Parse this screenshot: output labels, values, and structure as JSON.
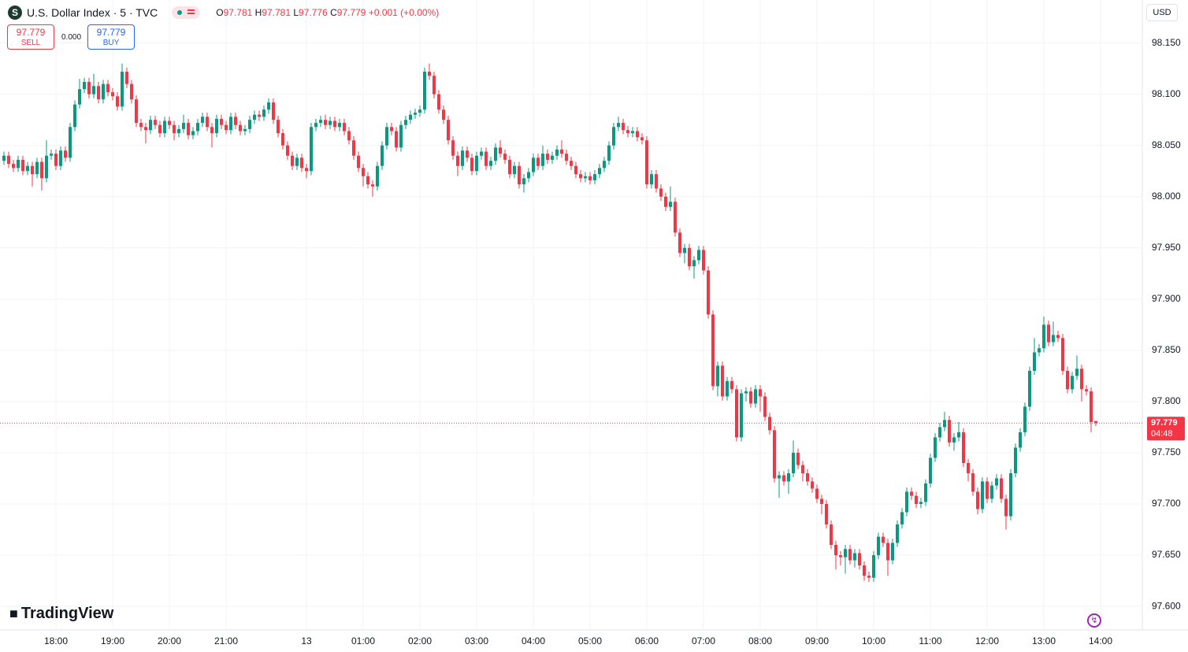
{
  "header": {
    "icon": "S",
    "symbol": "U.S. Dollar Index · 5 · TVC",
    "o_label": "O",
    "o": "97.781",
    "h_label": "H",
    "h": "97.781",
    "l_label": "L",
    "l": "97.776",
    "c_label": "C",
    "c": "97.779",
    "change": "+0.001 (+0.00%)"
  },
  "trade": {
    "sell_price": "97.779",
    "sell": "SELL",
    "spread": "0.000",
    "buy_price": "97.779",
    "buy": "BUY"
  },
  "currency": "USD",
  "logo": "TradingView",
  "chart_data": {
    "type": "candlestick",
    "up_color": "#089981",
    "down_color": "#f23645",
    "grid": true,
    "open": [
      98.035,
      98.04,
      98.032,
      98.028,
      98.036,
      98.025,
      98.03,
      98.022,
      98.034,
      98.018,
      98.04,
      98.042,
      98.03,
      98.045,
      98.038,
      98.068,
      98.09,
      98.105,
      98.112,
      98.1,
      98.108,
      98.095,
      98.11,
      98.102,
      98.098,
      98.088,
      98.122,
      98.11,
      98.095,
      98.072,
      98.068,
      98.065,
      98.075,
      98.07,
      98.062,
      98.074,
      98.07,
      98.062,
      98.066,
      98.072,
      98.06,
      98.064,
      98.072,
      98.078,
      98.068,
      98.062,
      98.076,
      98.07,
      98.065,
      98.078,
      98.07,
      98.064,
      98.066,
      98.075,
      98.08,
      98.078,
      98.085,
      98.092,
      98.075,
      98.062,
      98.05,
      98.04,
      98.03,
      98.038,
      98.028,
      98.025,
      98.068,
      98.072,
      98.075,
      98.07,
      98.074,
      98.068,
      98.072,
      98.064,
      98.055,
      98.04,
      98.028,
      98.02,
      98.012,
      98.01,
      98.03,
      98.05,
      98.068,
      98.064,
      98.048,
      98.07,
      98.075,
      98.08,
      98.082,
      98.085,
      98.122,
      98.118,
      98.1,
      98.085,
      98.075,
      98.055,
      98.04,
      98.03,
      98.045,
      98.038,
      98.025,
      98.04,
      98.044,
      98.03,
      98.035,
      98.048,
      98.042,
      98.036,
      98.022,
      98.03,
      98.012,
      98.018,
      98.024,
      98.038,
      98.03,
      98.042,
      98.036,
      98.04,
      98.046,
      98.042,
      98.035,
      98.03,
      98.022,
      98.018,
      98.02,
      98.016,
      98.022,
      98.028,
      98.035,
      98.05,
      98.068,
      98.072,
      98.065,
      98.062,
      98.064,
      98.058,
      98.055,
      98.012,
      98.022,
      98.008,
      98.0,
      97.99,
      97.995,
      97.965,
      97.945,
      97.95,
      97.932,
      97.938,
      97.948,
      97.928,
      97.885,
      97.815,
      97.835,
      97.805,
      97.82,
      97.812,
      97.765,
      97.808,
      97.81,
      97.798,
      97.812,
      97.805,
      97.785,
      97.772,
      97.725,
      97.728,
      97.722,
      97.73,
      97.75,
      97.738,
      97.73,
      97.722,
      97.715,
      97.705,
      97.7,
      97.68,
      97.66,
      97.65,
      97.648,
      97.656,
      97.645,
      97.652,
      97.64,
      97.63,
      97.628,
      97.65,
      97.668,
      97.662,
      97.645,
      97.662,
      97.68,
      97.692,
      97.712,
      97.708,
      97.7,
      97.702,
      97.72,
      97.745,
      97.765,
      97.775,
      97.782,
      97.76,
      97.765,
      97.77,
      97.74,
      97.73,
      97.712,
      97.695,
      97.722,
      97.705,
      97.718,
      97.725,
      97.705,
      97.688,
      97.73,
      97.755,
      97.77,
      97.795,
      97.83,
      97.848,
      97.852,
      97.875,
      97.858,
      97.865,
      97.862,
      97.83,
      97.812,
      97.825,
      97.832,
      97.812,
      97.81,
      97.781
    ],
    "high": [
      98.044,
      98.044,
      98.036,
      98.04,
      98.04,
      98.034,
      98.034,
      98.038,
      98.038,
      98.055,
      98.046,
      98.046,
      98.049,
      98.049,
      98.072,
      98.094,
      98.115,
      98.116,
      98.116,
      98.12,
      98.112,
      98.114,
      98.114,
      98.106,
      98.102,
      98.13,
      98.126,
      98.114,
      98.099,
      98.076,
      98.072,
      98.079,
      98.079,
      98.074,
      98.078,
      98.078,
      98.074,
      98.07,
      98.08,
      98.076,
      98.068,
      98.076,
      98.082,
      98.082,
      98.072,
      98.08,
      98.08,
      98.074,
      98.082,
      98.082,
      98.074,
      98.07,
      98.079,
      98.084,
      98.084,
      98.089,
      98.096,
      98.096,
      98.079,
      98.066,
      98.054,
      98.044,
      98.042,
      98.042,
      98.032,
      98.072,
      98.076,
      98.079,
      98.08,
      98.078,
      98.078,
      98.076,
      98.076,
      98.068,
      98.059,
      98.044,
      98.032,
      98.024,
      98.016,
      98.034,
      98.054,
      98.072,
      98.072,
      98.068,
      98.074,
      98.079,
      98.084,
      98.086,
      98.089,
      98.126,
      98.13,
      98.122,
      98.104,
      98.089,
      98.079,
      98.059,
      98.044,
      98.049,
      98.049,
      98.042,
      98.044,
      98.048,
      98.048,
      98.039,
      98.052,
      98.055,
      98.046,
      98.04,
      98.034,
      98.034,
      98.022,
      98.028,
      98.042,
      98.042,
      98.05,
      98.046,
      98.044,
      98.05,
      98.055,
      98.046,
      98.039,
      98.034,
      98.026,
      98.024,
      98.024,
      98.026,
      98.032,
      98.039,
      98.054,
      98.072,
      98.078,
      98.076,
      98.069,
      98.068,
      98.068,
      98.062,
      98.059,
      98.026,
      98.026,
      98.012,
      98.004,
      98.01,
      97.999,
      97.969,
      97.954,
      97.954,
      97.942,
      97.952,
      97.952,
      97.932,
      97.889,
      97.839,
      97.839,
      97.824,
      97.824,
      97.816,
      97.812,
      97.814,
      97.814,
      97.816,
      97.816,
      97.809,
      97.789,
      97.776,
      97.732,
      97.732,
      97.734,
      97.762,
      97.754,
      97.742,
      97.734,
      97.726,
      97.719,
      97.709,
      97.704,
      97.684,
      97.664,
      97.654,
      97.66,
      97.66,
      97.656,
      97.656,
      97.644,
      97.634,
      97.654,
      97.672,
      97.672,
      97.666,
      97.666,
      97.684,
      97.696,
      97.716,
      97.716,
      97.712,
      97.706,
      97.724,
      97.749,
      97.769,
      97.779,
      97.79,
      97.786,
      97.769,
      97.78,
      97.774,
      97.744,
      97.734,
      97.716,
      97.726,
      97.726,
      97.722,
      97.729,
      97.729,
      97.709,
      97.734,
      97.759,
      97.774,
      97.799,
      97.834,
      97.862,
      97.856,
      97.883,
      97.879,
      97.878,
      97.869,
      97.866,
      97.834,
      97.829,
      97.845,
      97.836,
      97.816,
      97.814,
      97.781
    ],
    "low": [
      98.031,
      98.028,
      98.024,
      98.024,
      98.021,
      98.021,
      98.01,
      98.018,
      98.006,
      98.014,
      98.036,
      98.026,
      98.026,
      98.034,
      98.034,
      98.064,
      98.086,
      98.101,
      98.096,
      98.096,
      98.091,
      98.091,
      98.098,
      98.094,
      98.084,
      98.084,
      98.106,
      98.091,
      98.068,
      98.064,
      98.052,
      98.061,
      98.066,
      98.058,
      98.058,
      98.066,
      98.055,
      98.058,
      98.062,
      98.056,
      98.056,
      98.06,
      98.068,
      98.064,
      98.048,
      98.058,
      98.066,
      98.061,
      98.061,
      98.066,
      98.06,
      98.06,
      98.062,
      98.071,
      98.074,
      98.074,
      98.081,
      98.071,
      98.058,
      98.046,
      98.036,
      98.026,
      98.026,
      98.024,
      98.018,
      98.021,
      98.064,
      98.068,
      98.066,
      98.066,
      98.064,
      98.064,
      98.06,
      98.051,
      98.036,
      98.024,
      98.01,
      98.008,
      98.0,
      98.006,
      98.026,
      98.046,
      98.06,
      98.044,
      98.044,
      98.066,
      98.071,
      98.076,
      98.078,
      98.081,
      98.114,
      98.096,
      98.081,
      98.071,
      98.051,
      98.036,
      98.02,
      98.026,
      98.034,
      98.021,
      98.021,
      98.036,
      98.026,
      98.026,
      98.031,
      98.038,
      98.032,
      98.018,
      98.018,
      98.008,
      98.004,
      98.014,
      98.02,
      98.026,
      98.026,
      98.032,
      98.032,
      98.036,
      98.038,
      98.031,
      98.026,
      98.018,
      98.014,
      98.014,
      98.012,
      98.012,
      98.018,
      98.024,
      98.031,
      98.046,
      98.064,
      98.061,
      98.058,
      98.058,
      98.054,
      98.051,
      98.008,
      98.008,
      98.004,
      97.996,
      97.986,
      97.986,
      97.961,
      97.941,
      97.935,
      97.928,
      97.92,
      97.934,
      97.924,
      97.881,
      97.811,
      97.805,
      97.801,
      97.801,
      97.808,
      97.761,
      97.761,
      97.8,
      97.794,
      97.794,
      97.79,
      97.781,
      97.768,
      97.721,
      97.706,
      97.718,
      97.71,
      97.726,
      97.734,
      97.722,
      97.718,
      97.711,
      97.701,
      97.69,
      97.676,
      97.656,
      97.636,
      97.64,
      97.632,
      97.641,
      97.638,
      97.636,
      97.625,
      97.624,
      97.624,
      97.646,
      97.658,
      97.63,
      97.641,
      97.658,
      97.676,
      97.688,
      97.704,
      97.696,
      97.696,
      97.698,
      97.716,
      97.741,
      97.761,
      97.771,
      97.756,
      97.752,
      97.761,
      97.736,
      97.722,
      97.708,
      97.69,
      97.691,
      97.701,
      97.701,
      97.714,
      97.701,
      97.675,
      97.684,
      97.726,
      97.751,
      97.766,
      97.791,
      97.826,
      97.844,
      97.848,
      97.854,
      97.854,
      97.858,
      97.826,
      97.808,
      97.808,
      97.821,
      97.8,
      97.806,
      97.77,
      97.776
    ],
    "close": [
      98.04,
      98.032,
      98.028,
      98.036,
      98.025,
      98.03,
      98.022,
      98.034,
      98.018,
      98.04,
      98.042,
      98.03,
      98.045,
      98.038,
      98.068,
      98.09,
      98.105,
      98.112,
      98.1,
      98.108,
      98.095,
      98.11,
      98.102,
      98.098,
      98.088,
      98.122,
      98.11,
      98.095,
      98.072,
      98.068,
      98.065,
      98.075,
      98.07,
      98.062,
      98.074,
      98.07,
      98.062,
      98.066,
      98.072,
      98.06,
      98.064,
      98.072,
      98.078,
      98.068,
      98.062,
      98.076,
      98.07,
      98.065,
      98.078,
      98.07,
      98.064,
      98.066,
      98.075,
      98.08,
      98.078,
      98.085,
      98.092,
      98.075,
      98.062,
      98.05,
      98.04,
      98.03,
      98.038,
      98.028,
      98.025,
      98.068,
      98.072,
      98.075,
      98.07,
      98.074,
      98.068,
      98.072,
      98.064,
      98.055,
      98.04,
      98.028,
      98.02,
      98.012,
      98.01,
      98.03,
      98.05,
      98.068,
      98.064,
      98.048,
      98.07,
      98.075,
      98.08,
      98.082,
      98.085,
      98.122,
      98.118,
      98.1,
      98.085,
      98.075,
      98.055,
      98.04,
      98.03,
      98.045,
      98.038,
      98.025,
      98.04,
      98.044,
      98.03,
      98.035,
      98.048,
      98.042,
      98.036,
      98.022,
      98.03,
      98.012,
      98.018,
      98.024,
      98.038,
      98.03,
      98.042,
      98.036,
      98.04,
      98.046,
      98.042,
      98.035,
      98.03,
      98.022,
      98.018,
      98.02,
      98.016,
      98.022,
      98.028,
      98.035,
      98.05,
      98.068,
      98.072,
      98.065,
      98.062,
      98.064,
      98.058,
      98.055,
      98.012,
      98.022,
      98.008,
      98.0,
      97.99,
      97.995,
      97.965,
      97.945,
      97.95,
      97.932,
      97.938,
      97.948,
      97.928,
      97.885,
      97.815,
      97.835,
      97.805,
      97.82,
      97.812,
      97.765,
      97.808,
      97.81,
      97.798,
      97.812,
      97.805,
      97.785,
      97.772,
      97.725,
      97.728,
      97.722,
      97.73,
      97.75,
      97.738,
      97.73,
      97.722,
      97.715,
      97.705,
      97.7,
      97.68,
      97.66,
      97.65,
      97.648,
      97.656,
      97.645,
      97.652,
      97.64,
      97.63,
      97.628,
      97.65,
      97.668,
      97.662,
      97.645,
      97.662,
      97.68,
      97.692,
      97.712,
      97.708,
      97.7,
      97.702,
      97.72,
      97.745,
      97.765,
      97.775,
      97.782,
      97.76,
      97.765,
      97.77,
      97.74,
      97.73,
      97.712,
      97.695,
      97.722,
      97.705,
      97.718,
      97.725,
      97.705,
      97.688,
      97.73,
      97.755,
      97.77,
      97.795,
      97.83,
      97.848,
      97.852,
      97.875,
      97.858,
      97.865,
      97.862,
      97.83,
      97.812,
      97.825,
      97.832,
      97.812,
      97.81,
      97.78,
      97.779
    ],
    "xlim": [
      -0.833,
      240.833
    ],
    "xticks": [
      {
        "value": 11,
        "label": "18:00"
      },
      {
        "value": 23,
        "label": "19:00"
      },
      {
        "value": 35,
        "label": "20:00"
      },
      {
        "value": 47,
        "label": "21:00"
      },
      {
        "value": 64,
        "label": "13"
      },
      {
        "value": 76,
        "label": "01:00"
      },
      {
        "value": 88,
        "label": "02:00"
      },
      {
        "value": 100,
        "label": "03:00"
      },
      {
        "value": 112,
        "label": "04:00"
      },
      {
        "value": 124,
        "label": "05:00"
      },
      {
        "value": 136,
        "label": "06:00"
      },
      {
        "value": 148,
        "label": "07:00"
      },
      {
        "value": 160,
        "label": "08:00"
      },
      {
        "value": 172,
        "label": "09:00"
      },
      {
        "value": 184,
        "label": "10:00"
      },
      {
        "value": 196,
        "label": "11:00"
      },
      {
        "value": 208,
        "label": "12:00"
      },
      {
        "value": 220,
        "label": "13:00"
      },
      {
        "value": 232,
        "label": "14:00"
      }
    ],
    "ylim": [
      97.577,
      98.192
    ],
    "yticks": [
      {
        "value": 97.6,
        "label": "97.600"
      },
      {
        "value": 97.65,
        "label": "97.650"
      },
      {
        "value": 97.7,
        "label": "97.700"
      },
      {
        "value": 97.75,
        "label": "97.750"
      },
      {
        "value": 97.8,
        "label": "97.800"
      },
      {
        "value": 97.85,
        "label": "97.850"
      },
      {
        "value": 97.9,
        "label": "97.900"
      },
      {
        "value": 97.95,
        "label": "97.950"
      },
      {
        "value": 98.0,
        "label": "98.000"
      },
      {
        "value": 98.05,
        "label": "98.050"
      },
      {
        "value": 98.1,
        "label": "98.100"
      },
      {
        "value": 98.15,
        "label": "98.150"
      }
    ],
    "last_price": 97.779,
    "countdown": "04:48"
  }
}
